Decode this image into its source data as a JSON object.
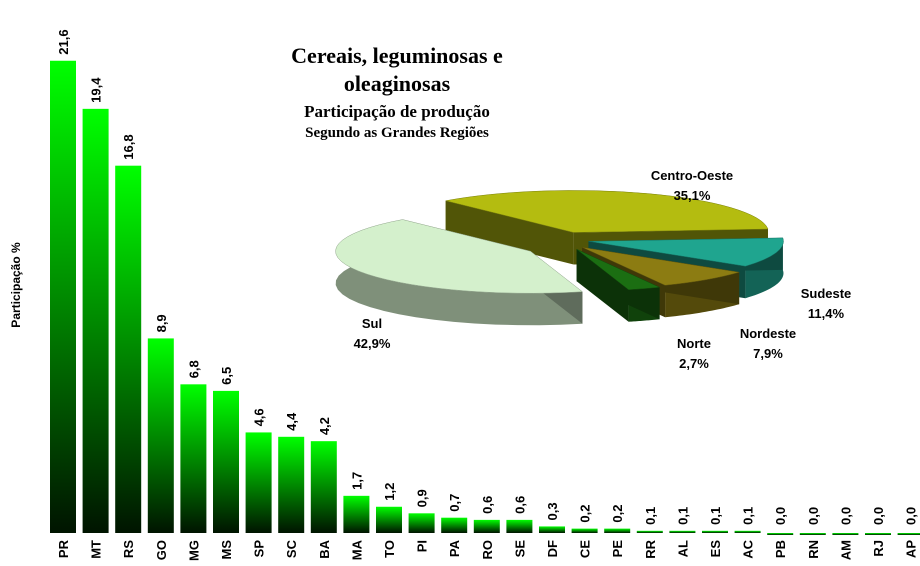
{
  "chart_data": [
    {
      "type": "bar",
      "y_label": "Participação %",
      "categories": [
        "PR",
        "MT",
        "RS",
        "GO",
        "MG",
        "MS",
        "SP",
        "SC",
        "BA",
        "MA",
        "TO",
        "PI",
        "PA",
        "RO",
        "SE",
        "DF",
        "CE",
        "PE",
        "RR",
        "AL",
        "ES",
        "AC",
        "PB",
        "RN",
        "AM",
        "RJ",
        "AP"
      ],
      "values": [
        21.6,
        19.4,
        16.8,
        8.9,
        6.8,
        6.5,
        4.6,
        4.4,
        4.2,
        1.7,
        1.2,
        0.9,
        0.7,
        0.6,
        0.6,
        0.3,
        0.2,
        0.2,
        0.1,
        0.1,
        0.1,
        0.1,
        0.0,
        0.0,
        0.0,
        0.0,
        0.0
      ],
      "value_labels": [
        "21,6",
        "19,4",
        "16,8",
        "8,9",
        "6,8",
        "6,5",
        "4,6",
        "4,4",
        "4,2",
        "1,7",
        "1,2",
        "0,9",
        "0,7",
        "0,6",
        "0,6",
        "0,3",
        "0,2",
        "0,2",
        "0,1",
        "0,1",
        "0,1",
        "0,1",
        "0,0",
        "0,0",
        "0,0",
        "0,0",
        "0,0"
      ],
      "color": "#00ff00",
      "ylim": [
        0,
        22
      ]
    },
    {
      "type": "pie",
      "title": "Cereais, leguminosas e oleaginosas",
      "subtitle": [
        "Participação de produção",
        "Segundo as Grandes Regiões"
      ],
      "categories": [
        "Centro-Oeste",
        "Sudeste",
        "Nordeste",
        "Norte",
        "Sul"
      ],
      "values": [
        35.1,
        11.4,
        7.9,
        2.7,
        42.9
      ],
      "value_labels": [
        "35,1%",
        "11,4%",
        "7,9%",
        "2,7%",
        "42,9%"
      ],
      "colors": [
        "#b4bc10",
        "#1fa58f",
        "#8c7c12",
        "#1b6e12",
        "#d4f0cc"
      ]
    }
  ]
}
